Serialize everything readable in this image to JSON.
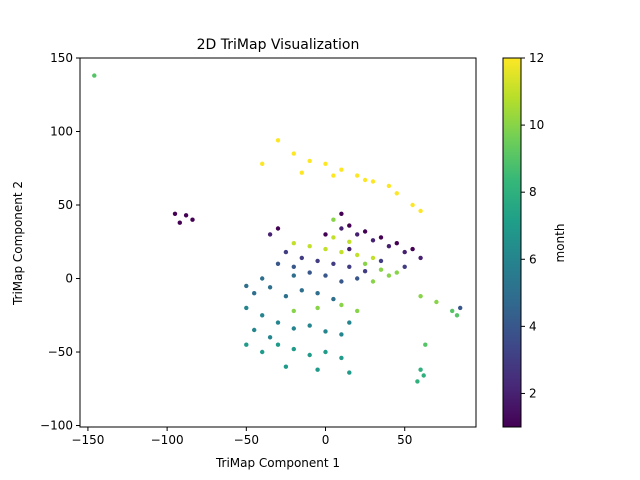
{
  "chart_data": {
    "type": "scatter",
    "title": "2D TriMap Visualization",
    "xlabel": "TriMap Component 1",
    "ylabel": "TriMap Component 2",
    "xlim": [
      -155,
      95
    ],
    "ylim": [
      -101,
      150
    ],
    "xticks": [
      -150,
      -100,
      -50,
      0,
      50
    ],
    "yticks": [
      -100,
      -50,
      0,
      50,
      100,
      150
    ],
    "grid": false,
    "colorbar": {
      "label": "month",
      "min": 1,
      "max": 12,
      "ticks": [
        2,
        4,
        6,
        8,
        10,
        12
      ],
      "colormap": "viridis"
    },
    "clusters": [
      {
        "month": 12,
        "points": [
          [
            -30,
            94
          ],
          [
            -20,
            85
          ],
          [
            -10,
            80
          ],
          [
            0,
            78
          ],
          [
            10,
            74
          ],
          [
            20,
            70
          ],
          [
            30,
            66
          ],
          [
            40,
            63
          ],
          [
            -40,
            78
          ],
          [
            -15,
            72
          ],
          [
            5,
            70
          ],
          [
            25,
            67
          ],
          [
            45,
            58
          ],
          [
            55,
            50
          ],
          [
            60,
            46
          ]
        ]
      },
      {
        "month": 11,
        "points": [
          [
            -20,
            24
          ],
          [
            -10,
            22
          ],
          [
            0,
            20
          ],
          [
            10,
            18
          ],
          [
            20,
            16
          ],
          [
            30,
            14
          ],
          [
            5,
            28
          ],
          [
            15,
            25
          ]
        ]
      },
      {
        "month": 10,
        "points": [
          [
            25,
            10
          ],
          [
            35,
            6
          ],
          [
            45,
            4
          ],
          [
            30,
            -2
          ],
          [
            40,
            2
          ],
          [
            60,
            -12
          ],
          [
            70,
            -16
          ],
          [
            -20,
            -22
          ],
          [
            -5,
            -20
          ],
          [
            10,
            -18
          ],
          [
            20,
            -22
          ],
          [
            5,
            40
          ]
        ]
      },
      {
        "month": 9,
        "points": [
          [
            80,
            -22
          ],
          [
            83,
            -25
          ],
          [
            -146,
            138
          ],
          [
            63,
            -45
          ]
        ]
      },
      {
        "month": 8,
        "points": [
          [
            60,
            -62
          ],
          [
            62,
            -66
          ],
          [
            58,
            -70
          ]
        ]
      },
      {
        "month": 7,
        "points": [
          [
            -40,
            -50
          ],
          [
            -30,
            -45
          ],
          [
            -20,
            -48
          ],
          [
            -10,
            -52
          ],
          [
            0,
            -50
          ],
          [
            10,
            -54
          ],
          [
            -25,
            -60
          ],
          [
            -5,
            -62
          ],
          [
            -50,
            -45
          ],
          [
            15,
            -64
          ]
        ]
      },
      {
        "month": 6,
        "points": [
          [
            -50,
            -20
          ],
          [
            -40,
            -25
          ],
          [
            -30,
            -30
          ],
          [
            -20,
            -34
          ],
          [
            -10,
            -32
          ],
          [
            0,
            -36
          ],
          [
            10,
            -38
          ],
          [
            -45,
            -35
          ],
          [
            -35,
            -40
          ],
          [
            15,
            -30
          ]
        ]
      },
      {
        "month": 5,
        "points": [
          [
            -45,
            -10
          ],
          [
            -35,
            -6
          ],
          [
            -25,
            -12
          ],
          [
            -15,
            -8
          ],
          [
            -5,
            -10
          ],
          [
            5,
            -14
          ],
          [
            -40,
            0
          ],
          [
            -50,
            -5
          ],
          [
            -20,
            2
          ]
        ]
      },
      {
        "month": 4,
        "points": [
          [
            -20,
            8
          ],
          [
            -10,
            4
          ],
          [
            0,
            2
          ],
          [
            10,
            -2
          ],
          [
            -30,
            10
          ],
          [
            20,
            0
          ],
          [
            85,
            -20
          ]
        ]
      },
      {
        "month": 3,
        "points": [
          [
            -15,
            14
          ],
          [
            -5,
            12
          ],
          [
            5,
            10
          ],
          [
            15,
            8
          ],
          [
            25,
            5
          ],
          [
            -25,
            18
          ],
          [
            35,
            12
          ],
          [
            50,
            8
          ]
        ]
      },
      {
        "month": 2,
        "points": [
          [
            20,
            30
          ],
          [
            30,
            26
          ],
          [
            40,
            22
          ],
          [
            50,
            18
          ],
          [
            60,
            14
          ],
          [
            10,
            34
          ],
          [
            -35,
            30
          ],
          [
            15,
            20
          ]
        ]
      },
      {
        "month": 1,
        "points": [
          [
            -95,
            44
          ],
          [
            -88,
            43
          ],
          [
            -84,
            40
          ],
          [
            -92,
            38
          ],
          [
            10,
            44
          ],
          [
            15,
            36
          ],
          [
            25,
            32
          ],
          [
            35,
            28
          ],
          [
            45,
            24
          ],
          [
            55,
            20
          ],
          [
            -30,
            34
          ],
          [
            0,
            30
          ]
        ]
      }
    ]
  }
}
